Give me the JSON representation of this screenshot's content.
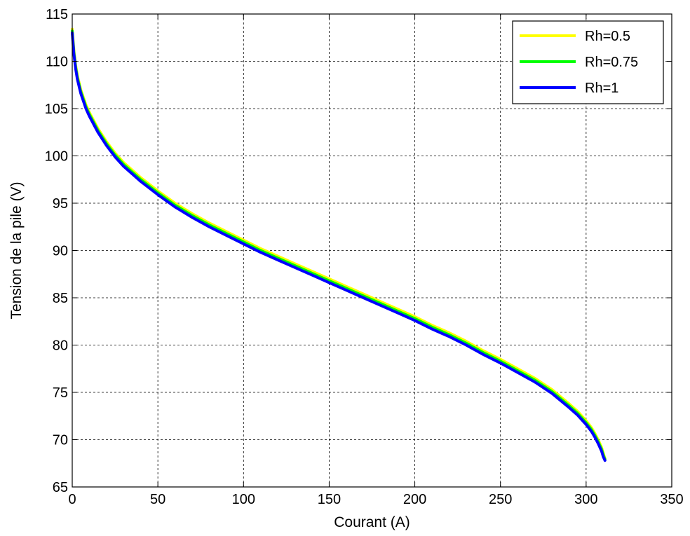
{
  "chart_data": {
    "type": "line",
    "title": "",
    "xlabel": "Courant (A)",
    "ylabel": "Tension de la pile (V)",
    "xlim": [
      0,
      350
    ],
    "ylim": [
      65,
      115
    ],
    "xticks": [
      0,
      50,
      100,
      150,
      200,
      250,
      300,
      350
    ],
    "yticks": [
      65,
      70,
      75,
      80,
      85,
      90,
      95,
      100,
      105,
      110,
      115
    ],
    "xtick_labels": [
      "0",
      "50",
      "100",
      "150",
      "200",
      "250",
      "300",
      "350"
    ],
    "ytick_labels": [
      "65",
      "70",
      "75",
      "80",
      "85",
      "90",
      "95",
      "100",
      "105",
      "110",
      "115"
    ],
    "grid": true,
    "legend_position": "top-right",
    "series": [
      {
        "name": "Rh=0.5",
        "color": "#ffff00",
        "x": [
          0,
          1,
          2,
          3,
          5,
          8,
          10,
          15,
          20,
          25,
          30,
          35,
          40,
          50,
          60,
          70,
          80,
          90,
          100,
          110,
          120,
          130,
          140,
          150,
          160,
          170,
          180,
          190,
          200,
          210,
          220,
          230,
          240,
          250,
          260,
          270,
          280,
          290,
          295,
          300,
          303,
          305,
          307,
          309,
          310,
          311
        ],
        "y": [
          113.4,
          111.1,
          109.6,
          108.5,
          107.0,
          105.4,
          104.6,
          102.9,
          101.5,
          100.3,
          99.3,
          98.5,
          97.7,
          96.3,
          95.0,
          93.9,
          92.9,
          92.0,
          91.1,
          90.2,
          89.4,
          88.6,
          87.8,
          87.0,
          86.2,
          85.4,
          84.6,
          83.8,
          83.0,
          82.1,
          81.3,
          80.4,
          79.4,
          78.5,
          77.5,
          76.5,
          75.3,
          73.8,
          73.0,
          72.0,
          71.3,
          70.7,
          70.0,
          69.2,
          68.6,
          68.0
        ]
      },
      {
        "name": "Rh=0.75",
        "color": "#00ff00",
        "x": [
          0,
          1,
          2,
          3,
          5,
          8,
          10,
          15,
          20,
          25,
          30,
          35,
          40,
          50,
          60,
          70,
          80,
          90,
          100,
          110,
          120,
          130,
          140,
          150,
          160,
          170,
          180,
          190,
          200,
          210,
          220,
          230,
          240,
          250,
          260,
          270,
          280,
          290,
          295,
          300,
          303,
          305,
          307,
          309,
          310,
          311
        ],
        "y": [
          113.2,
          110.9,
          109.4,
          108.3,
          106.8,
          105.2,
          104.4,
          102.7,
          101.3,
          100.1,
          99.1,
          98.3,
          97.5,
          96.1,
          94.8,
          93.7,
          92.7,
          91.8,
          90.9,
          90.0,
          89.2,
          88.4,
          87.6,
          86.8,
          86.0,
          85.2,
          84.4,
          83.6,
          82.8,
          81.9,
          81.1,
          80.2,
          79.2,
          78.3,
          77.3,
          76.3,
          75.1,
          73.6,
          72.8,
          71.8,
          71.1,
          70.5,
          69.8,
          69.0,
          68.4,
          67.9
        ]
      },
      {
        "name": "Rh=1",
        "color": "#0000ff",
        "x": [
          0,
          1,
          2,
          3,
          5,
          8,
          10,
          15,
          20,
          25,
          30,
          35,
          40,
          50,
          60,
          70,
          80,
          90,
          100,
          110,
          120,
          130,
          140,
          150,
          160,
          170,
          180,
          190,
          200,
          210,
          220,
          230,
          240,
          250,
          260,
          270,
          280,
          290,
          295,
          300,
          303,
          305,
          307,
          309,
          310,
          311
        ],
        "y": [
          113.0,
          110.7,
          109.2,
          108.1,
          106.6,
          105.0,
          104.2,
          102.5,
          101.1,
          99.9,
          98.9,
          98.1,
          97.3,
          95.9,
          94.6,
          93.5,
          92.5,
          91.6,
          90.7,
          89.8,
          89.0,
          88.2,
          87.4,
          86.6,
          85.8,
          85.0,
          84.2,
          83.4,
          82.6,
          81.7,
          80.9,
          80.0,
          79.0,
          78.1,
          77.1,
          76.1,
          74.9,
          73.4,
          72.6,
          71.6,
          70.9,
          70.3,
          69.6,
          68.8,
          68.2,
          67.8
        ]
      }
    ]
  }
}
